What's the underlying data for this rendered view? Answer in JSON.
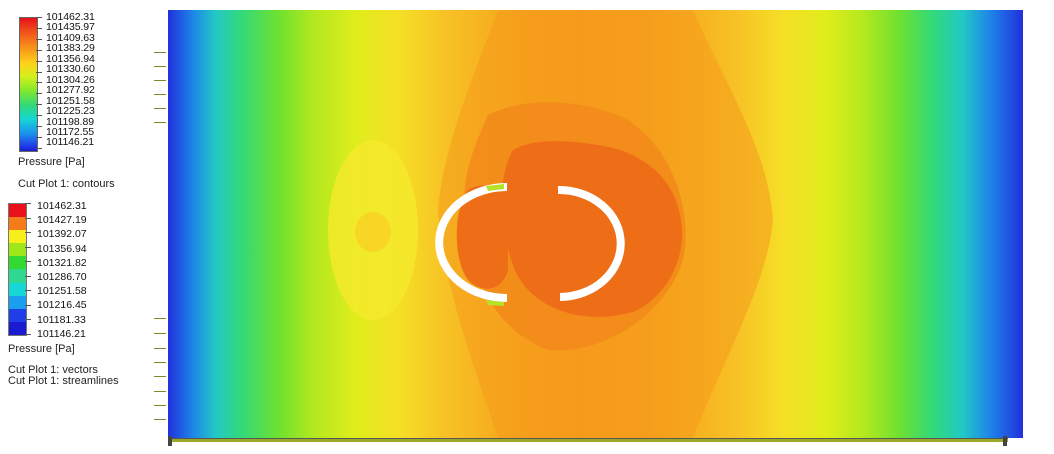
{
  "legend_top": {
    "values": [
      "101462.31",
      "101435.97",
      "101409.63",
      "101383.29",
      "101356.94",
      "101330.60",
      "101304.26",
      "101277.92",
      "101251.58",
      "101225.23",
      "101198.89",
      "101172.55",
      "101146.21"
    ],
    "quantity": "Pressure [Pa]",
    "plot_label": "Cut Plot 1: contours"
  },
  "legend_bottom": {
    "values": [
      "101462.31",
      "101427.19",
      "101392.07",
      "101356.94",
      "101321.82",
      "101286.70",
      "101251.58",
      "101216.45",
      "101181.33",
      "101146.21"
    ],
    "colors": [
      "#e8101b",
      "#f47a1a",
      "#f8ee1a",
      "#9ee81a",
      "#33d933",
      "#2ed88f",
      "#17d6d6",
      "#1a9ff0",
      "#1f3ee8",
      "#1a1ad0"
    ],
    "quantity": "Pressure [Pa]",
    "plot_label_1": "Cut Plot 1: vectors",
    "plot_label_2": "Cut Plot 1: streamlines"
  }
}
